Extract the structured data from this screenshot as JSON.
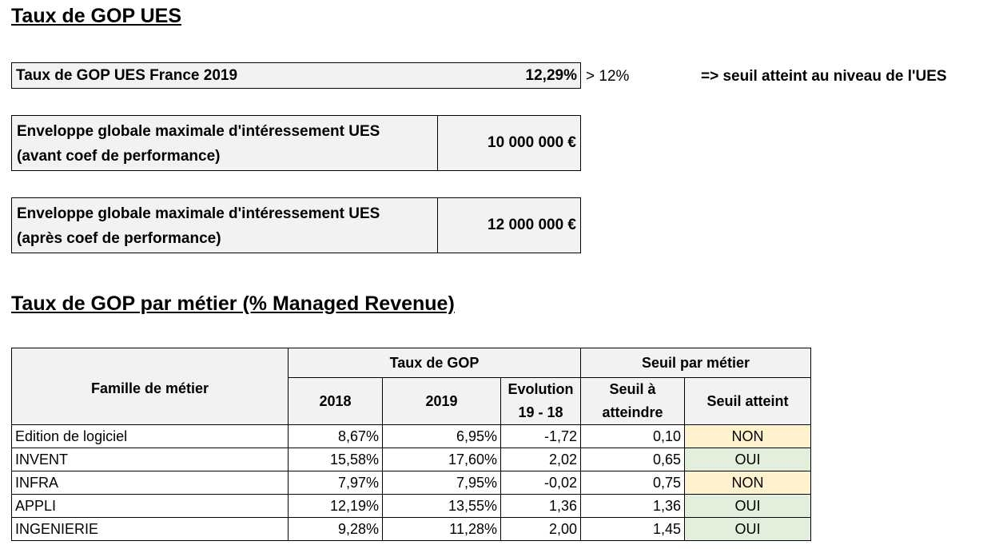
{
  "section1": {
    "title": "Taux de GOP UES",
    "gop_label": "Taux de GOP UES France 2019",
    "gop_value": "12,29%",
    "comparison": "> 12%",
    "note": "=> seuil atteint au niveau de l'UES",
    "envelope_before": {
      "line1": "Enveloppe globale maximale d'intéressement UES",
      "line2": "(avant coef de performance)",
      "value": "10 000 000 €"
    },
    "envelope_after": {
      "line1": "Enveloppe globale maximale d'intéressement UES",
      "line2": "(après coef de performance)",
      "value": "12 000 000 €"
    }
  },
  "section2": {
    "title": "Taux de GOP par métier (% Managed Revenue)",
    "headers": {
      "famille": "Famille de métier",
      "taux_gop": "Taux de GOP",
      "seuil_par_metier": "Seuil par métier",
      "y2018": "2018",
      "y2019": "2019",
      "evolution_l1": "Evolution",
      "evolution_l2": "19 - 18",
      "seuil_l1": "Seuil à",
      "seuil_l2": "atteindre",
      "seuil_atteint": "Seuil atteint"
    },
    "rows": [
      {
        "famille": "Edition de logiciel",
        "y2018": "8,67%",
        "y2019": "6,95%",
        "evolution": "-1,72",
        "seuil": "0,10",
        "atteint": "NON"
      },
      {
        "famille": "INVENT",
        "y2018": "15,58%",
        "y2019": "17,60%",
        "evolution": "2,02",
        "seuil": "0,65",
        "atteint": "OUI"
      },
      {
        "famille": "INFRA",
        "y2018": "7,97%",
        "y2019": "7,95%",
        "evolution": "-0,02",
        "seuil": "0,75",
        "atteint": "NON"
      },
      {
        "famille": "APPLI",
        "y2018": "12,19%",
        "y2019": "13,55%",
        "evolution": "1,36",
        "seuil": "1,36",
        "atteint": "OUI"
      },
      {
        "famille": "INGENIERIE",
        "y2018": "9,28%",
        "y2019": "11,28%",
        "evolution": "2,00",
        "seuil": "1,45",
        "atteint": "OUI"
      }
    ]
  },
  "colors": {
    "header_bg": "#f2f2f2",
    "non_bg": "#fff2cc",
    "oui_bg": "#e2efda"
  }
}
